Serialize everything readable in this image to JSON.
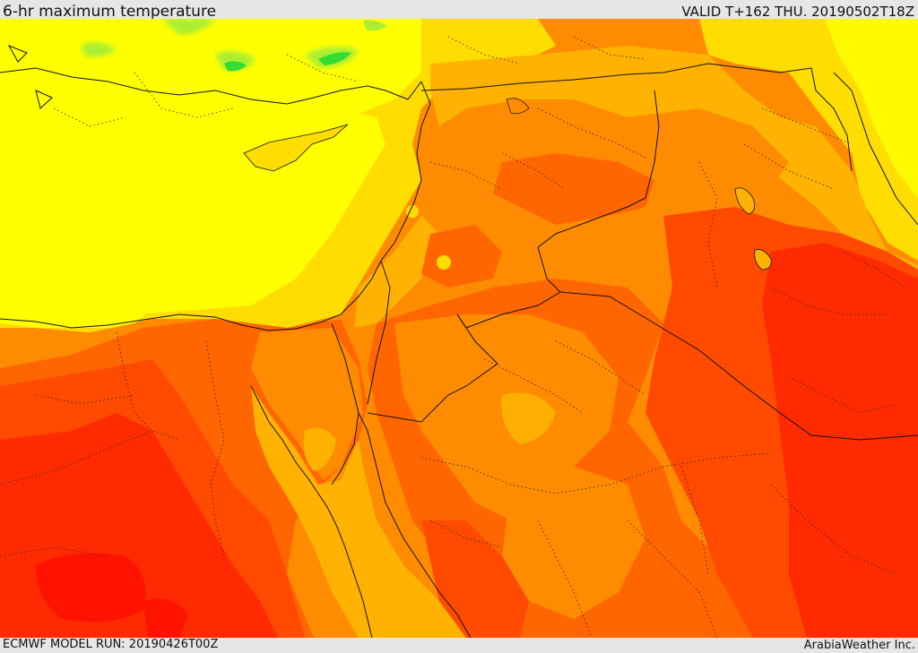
{
  "header": {
    "title": "6-hr maximum temperature",
    "valid": "VALID T+162 THU. 20190502T18Z"
  },
  "footer": {
    "model_run": "ECMWF MODEL RUN: 20190426T00Z",
    "credit": "ArabiaWeather Inc."
  },
  "palette": {
    "green": "#33dd33",
    "light_green": "#aaee33",
    "yellow": "#ffff00",
    "gold": "#ffdd00",
    "light_orange": "#ffb300",
    "orange": "#ff8c00",
    "dark_orange": "#ff6600",
    "red_orange": "#ff4a00",
    "red": "#ff2a00",
    "deep_red": "#ff1200",
    "border": "#111111"
  }
}
